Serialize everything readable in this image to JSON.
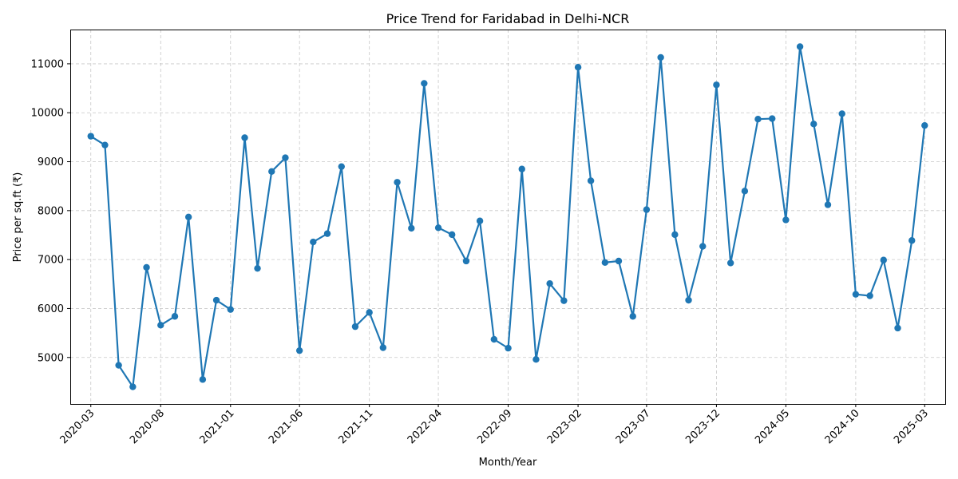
{
  "chart_data": {
    "type": "line",
    "title": "Price Trend for Faridabad in Delhi-NCR",
    "xlabel": "Month/Year",
    "ylabel": "Price per sq.ft (₹)",
    "x_tick_labels": [
      "2020-03",
      "2020-08",
      "2021-01",
      "2021-06",
      "2021-11",
      "2022-04",
      "2022-09",
      "2023-02",
      "2023-07",
      "2023-12",
      "2024-05",
      "2024-10",
      "2025-03"
    ],
    "y_ticks": [
      5000,
      6000,
      7000,
      8000,
      9000,
      10000,
      11000
    ],
    "ylim": [
      4050,
      11700
    ],
    "xlim": [
      "2020-01-16",
      "2025-04-15"
    ],
    "grid": true,
    "line_color": "#1f77b4",
    "series": [
      {
        "x": [
          "2020-03-01",
          "2020-04-01",
          "2020-05-01",
          "2020-06-01",
          "2020-07-01",
          "2020-08-01",
          "2020-09-01",
          "2020-10-01",
          "2020-11-01",
          "2020-12-01",
          "2021-01-01",
          "2021-02-01",
          "2021-03-01",
          "2021-04-01",
          "2021-05-01",
          "2021-06-01",
          "2021-07-01",
          "2021-08-01",
          "2021-09-01",
          "2021-10-01",
          "2021-11-01",
          "2021-12-01",
          "2022-01-01",
          "2022-02-01",
          "2022-03-01",
          "2022-04-01",
          "2022-05-01",
          "2022-06-01",
          "2022-07-01",
          "2022-08-01",
          "2022-09-01",
          "2022-10-01",
          "2022-11-01",
          "2022-12-01",
          "2023-01-01",
          "2023-02-01",
          "2023-03-01",
          "2023-04-01",
          "2023-05-01",
          "2023-06-01",
          "2023-07-01",
          "2023-08-01",
          "2023-09-01",
          "2023-10-01",
          "2023-11-01",
          "2023-12-01",
          "2024-01-01",
          "2024-02-01",
          "2024-03-01",
          "2024-04-01",
          "2024-05-01",
          "2024-06-01",
          "2024-07-01",
          "2024-08-01",
          "2024-09-01",
          "2024-10-01",
          "2024-11-01",
          "2024-12-01",
          "2025-01-01",
          "2025-02-01",
          "2025-03-01"
        ],
        "values": [
          9520,
          9340,
          4840,
          4400,
          6840,
          5660,
          5840,
          7870,
          4550,
          6170,
          5980,
          9490,
          6820,
          8800,
          9080,
          5140,
          7360,
          7530,
          8900,
          5630,
          5920,
          5200,
          8580,
          7640,
          10600,
          7650,
          7510,
          6970,
          7790,
          5370,
          5190,
          8850,
          4960,
          6510,
          6160,
          10930,
          8610,
          6940,
          6970,
          5840,
          8020,
          11130,
          7510,
          6170,
          7270,
          10570,
          6930,
          8400,
          9870,
          9880,
          7810,
          11350,
          9770,
          8120,
          9980,
          6290,
          6260,
          6990,
          5600,
          7390,
          9740
        ]
      }
    ]
  }
}
